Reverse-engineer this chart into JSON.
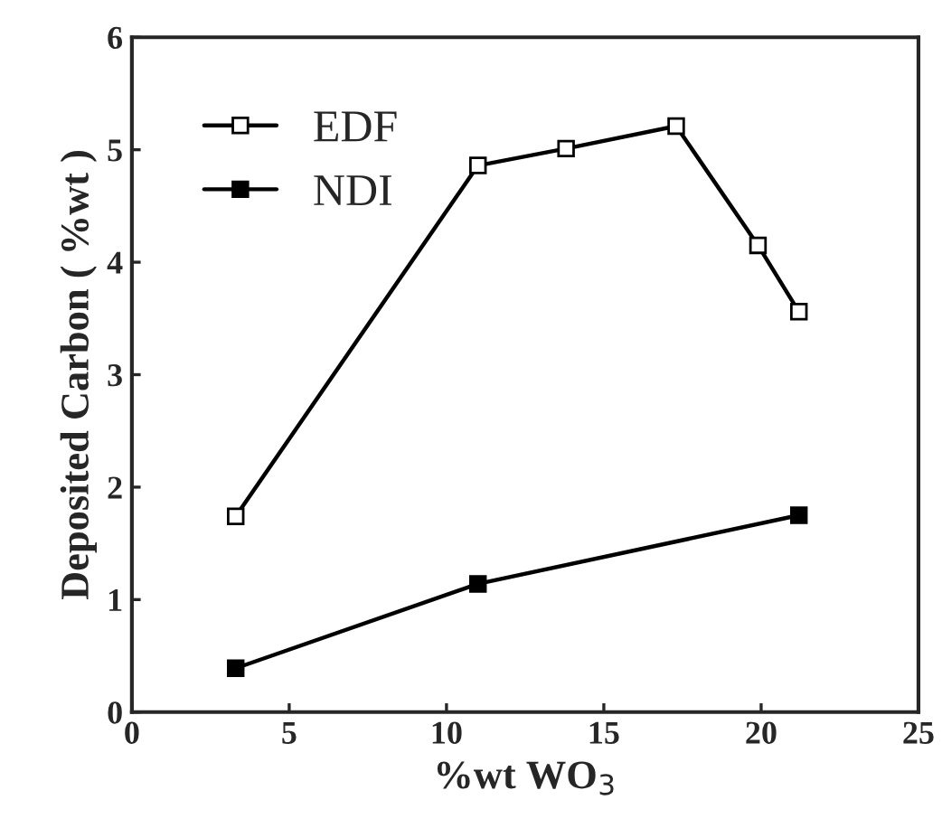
{
  "chart_data": {
    "type": "line",
    "xlabel": "%wt WO$_{3}$",
    "ylabel": "Deposited Carbon ( %wt )",
    "xlim": [
      0,
      25
    ],
    "xticks": [
      0,
      5,
      10,
      15,
      20,
      25
    ],
    "ylim": [
      0,
      6
    ],
    "yticks": [
      0,
      1,
      2,
      3,
      4,
      5,
      6
    ],
    "grid": false,
    "legend": "top left",
    "marker": "square",
    "line_style": "solid",
    "series": [
      {
        "name": "EDF",
        "color": "#000000",
        "x": [
          3.3,
          11.0,
          13.8,
          17.3,
          19.9,
          21.2
        ],
        "values": [
          1.74,
          4.86,
          5.01,
          5.21,
          4.15,
          3.56
        ]
      },
      {
        "name": "NDI",
        "color": "#000000",
        "x": [
          3.3,
          11.0,
          21.2
        ],
        "values": [
          0.39,
          1.14,
          1.75
        ]
      }
    ]
  }
}
